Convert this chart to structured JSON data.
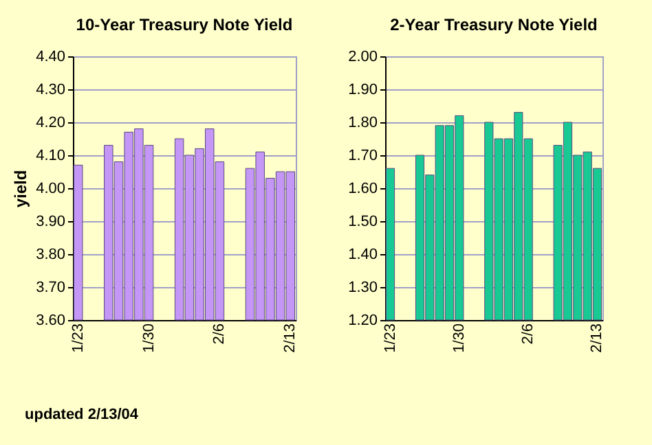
{
  "chart_data": [
    {
      "type": "bar",
      "title": "10-Year Treasury Note Yield",
      "ylabel": "yield",
      "categories": [
        "1/23",
        null,
        null,
        null,
        null,
        null,
        null,
        "1/30",
        null,
        null,
        null,
        null,
        null,
        null,
        "2/6",
        null,
        null,
        null,
        null,
        null,
        null,
        "2/13"
      ],
      "values": [
        4.07,
        null,
        null,
        4.13,
        4.08,
        4.17,
        4.18,
        4.13,
        null,
        null,
        4.15,
        4.1,
        4.12,
        4.18,
        4.08,
        null,
        null,
        4.06,
        4.11,
        4.03,
        4.05,
        4.05
      ],
      "color": "#c496f5",
      "ylim": [
        3.6,
        4.4
      ],
      "yticks": [
        {
          "value": 3.6,
          "label": "3.60"
        },
        {
          "value": 3.7,
          "label": "3.70"
        },
        {
          "value": 3.8,
          "label": "3.80"
        },
        {
          "value": 3.9,
          "label": "3.90"
        },
        {
          "value": 4.0,
          "label": "4.00"
        },
        {
          "value": 4.1,
          "label": "4.10"
        },
        {
          "value": 4.2,
          "label": "4.20"
        },
        {
          "value": 4.3,
          "label": "4.30"
        },
        {
          "value": 4.4,
          "label": "4.40"
        }
      ],
      "grid": "y",
      "annotations": [
        "updated 2/13/04"
      ]
    },
    {
      "type": "bar",
      "title": "2-Year Treasury Note Yield",
      "categories": [
        "1/23",
        null,
        null,
        null,
        null,
        null,
        null,
        "1/30",
        null,
        null,
        null,
        null,
        null,
        null,
        "2/6",
        null,
        null,
        null,
        null,
        null,
        null,
        "2/13"
      ],
      "values": [
        1.66,
        null,
        null,
        1.7,
        1.64,
        1.79,
        1.79,
        1.82,
        null,
        null,
        1.8,
        1.75,
        1.75,
        1.83,
        1.75,
        null,
        null,
        1.73,
        1.8,
        1.7,
        1.71,
        1.66
      ],
      "color": "#19c994",
      "ylim": [
        1.2,
        2.0
      ],
      "yticks": [
        {
          "value": 1.2,
          "label": "1.20"
        },
        {
          "value": 1.3,
          "label": "1.30"
        },
        {
          "value": 1.4,
          "label": "1.40"
        },
        {
          "value": 1.5,
          "label": "1.50"
        },
        {
          "value": 1.6,
          "label": "1.60"
        },
        {
          "value": 1.7,
          "label": "1.70"
        },
        {
          "value": 1.8,
          "label": "1.80"
        },
        {
          "value": 1.9,
          "label": "1.90"
        },
        {
          "value": 2.0,
          "label": "2.00"
        }
      ],
      "grid": "y"
    }
  ]
}
